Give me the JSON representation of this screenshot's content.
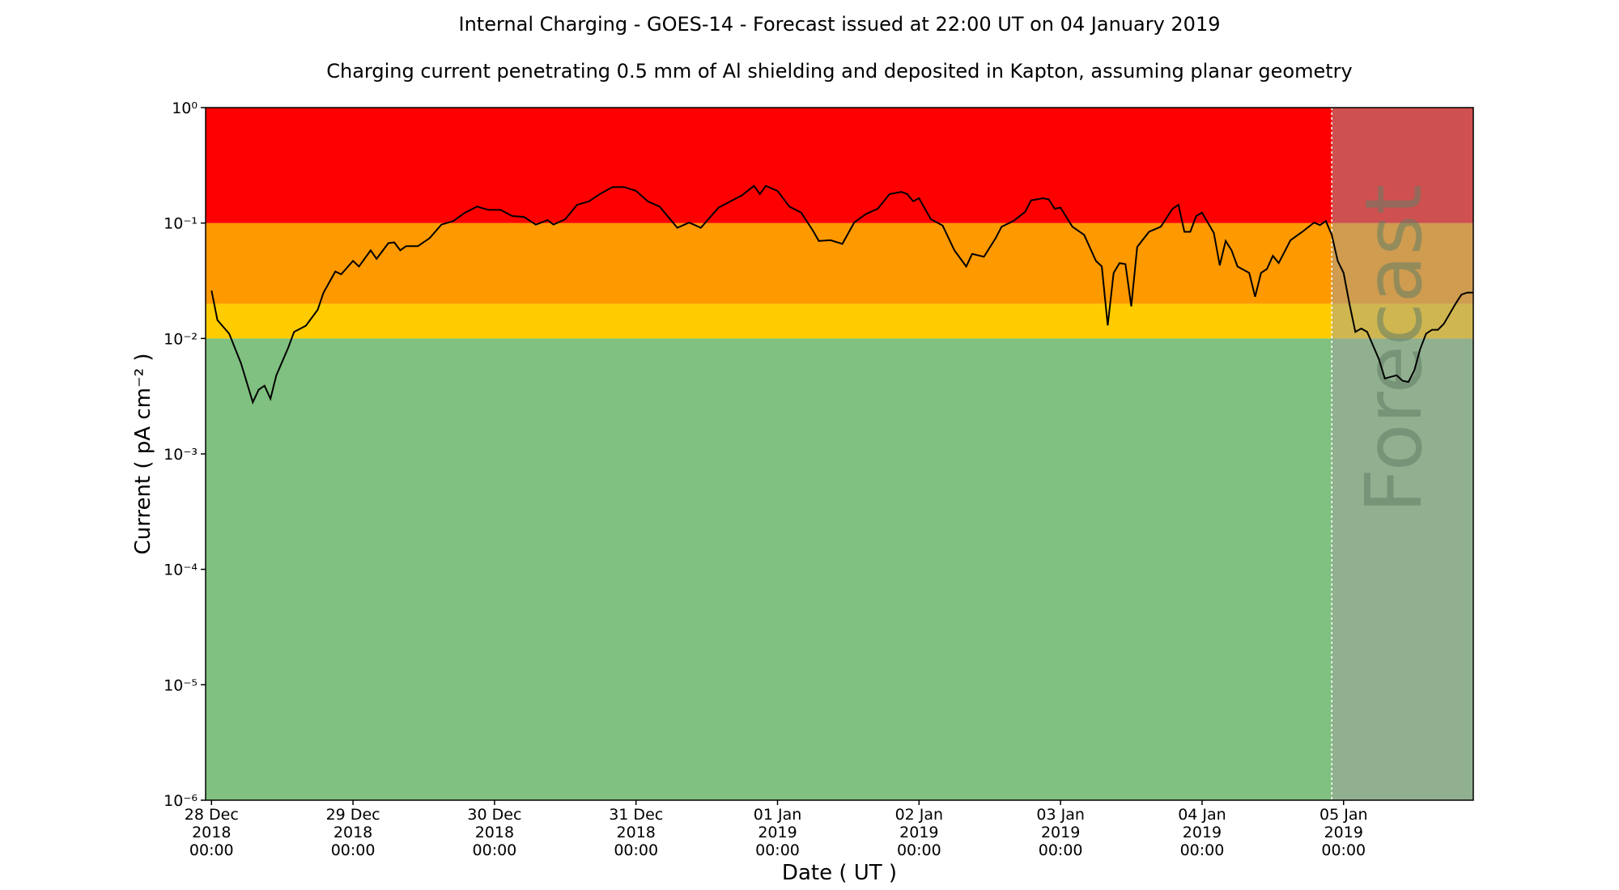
{
  "chart_data": {
    "type": "line",
    "title": "Internal Charging - GOES-14 - Forecast issued at 22:00 UT on 04 January 2019",
    "subtitle": "Charging current penetrating 0.5 mm of Al shielding and deposited in Kapton, assuming planar geometry",
    "x_label": "Date ( UT )",
    "y_label": "Current ( pA cm⁻² )",
    "annotation": "Forecast",
    "forecast_start": "2019-01-04T22:00",
    "log_y": true,
    "color": "#000000",
    "bands": [
      {
        "from": 1e-06,
        "to": 0.01,
        "color": "#80c080"
      },
      {
        "from": 0.01,
        "to": 0.02,
        "color": "#ffcc00"
      },
      {
        "from": 0.02,
        "to": 0.1,
        "color": "#ff9900"
      },
      {
        "from": 0.1,
        "to": 1,
        "color": "#ff0000"
      }
    ],
    "forecast_shade": "rgba(160,160,160,0.5)",
    "xlim": [
      "2018-12-27T23:00",
      "2019-01-05T22:00"
    ],
    "ylim": [
      1e-06,
      1
    ],
    "yticks": [
      {
        "value": 1e-06,
        "label": "10⁻⁶"
      },
      {
        "value": 1e-05,
        "label": "10⁻⁵"
      },
      {
        "value": 0.0001,
        "label": "10⁻⁴"
      },
      {
        "value": 0.001,
        "label": "10⁻³"
      },
      {
        "value": 0.01,
        "label": "10⁻²"
      },
      {
        "value": 0.1,
        "label": "10⁻¹"
      },
      {
        "value": 1,
        "label": "10⁰"
      }
    ],
    "xticks": [
      {
        "value": "2018-12-28T00:00",
        "label": [
          "28 Dec",
          "2018",
          "00:00"
        ]
      },
      {
        "value": "2018-12-29T00:00",
        "label": [
          "29 Dec",
          "2018",
          "00:00"
        ]
      },
      {
        "value": "2018-12-30T00:00",
        "label": [
          "30 Dec",
          "2018",
          "00:00"
        ]
      },
      {
        "value": "2018-12-31T00:00",
        "label": [
          "31 Dec",
          "2018",
          "00:00"
        ]
      },
      {
        "value": "2019-01-01T00:00",
        "label": [
          "01 Jan",
          "2019",
          "00:00"
        ]
      },
      {
        "value": "2019-01-02T00:00",
        "label": [
          "02 Jan",
          "2019",
          "00:00"
        ]
      },
      {
        "value": "2019-01-03T00:00",
        "label": [
          "03 Jan",
          "2019",
          "00:00"
        ]
      },
      {
        "value": "2019-01-04T00:00",
        "label": [
          "04 Jan",
          "2019",
          "00:00"
        ]
      },
      {
        "value": "2019-01-05T00:00",
        "label": [
          "05 Jan",
          "2019",
          "00:00"
        ]
      }
    ],
    "x": [
      "2018-12-28T00:00",
      "2018-12-28T01:00",
      "2018-12-28T03:00",
      "2018-12-28T05:00",
      "2018-12-28T07:00",
      "2018-12-28T08:00",
      "2018-12-28T09:00",
      "2018-12-28T10:00",
      "2018-12-28T11:00",
      "2018-12-28T13:00",
      "2018-12-28T14:00",
      "2018-12-28T16:00",
      "2018-12-28T18:00",
      "2018-12-28T19:00",
      "2018-12-28T21:00",
      "2018-12-28T22:00",
      "2018-12-29T00:00",
      "2018-12-29T01:00",
      "2018-12-29T03:00",
      "2018-12-29T04:00",
      "2018-12-29T06:00",
      "2018-12-29T07:00",
      "2018-12-29T08:00",
      "2018-12-29T09:00",
      "2018-12-29T11:00",
      "2018-12-29T13:00",
      "2018-12-29T15:00",
      "2018-12-29T17:00",
      "2018-12-29T19:00",
      "2018-12-29T21:00",
      "2018-12-29T23:00",
      "2018-12-30T01:00",
      "2018-12-30T03:00",
      "2018-12-30T05:00",
      "2018-12-30T07:00",
      "2018-12-30T09:00",
      "2018-12-30T10:00",
      "2018-12-30T12:00",
      "2018-12-30T14:00",
      "2018-12-30T16:00",
      "2018-12-30T18:00",
      "2018-12-30T20:00",
      "2018-12-30T22:00",
      "2018-12-31T00:00",
      "2018-12-31T02:00",
      "2018-12-31T04:00",
      "2018-12-31T07:00",
      "2018-12-31T09:00",
      "2018-12-31T11:00",
      "2018-12-31T14:00",
      "2018-12-31T16:00",
      "2018-12-31T18:00",
      "2018-12-31T20:00",
      "2018-12-31T21:00",
      "2018-12-31T22:00",
      "2019-01-01T00:00",
      "2019-01-01T02:00",
      "2019-01-01T04:00",
      "2019-01-01T06:00",
      "2019-01-01T07:00",
      "2019-01-01T09:00",
      "2019-01-01T11:00",
      "2019-01-01T13:00",
      "2019-01-01T15:00",
      "2019-01-01T17:00",
      "2019-01-01T19:00",
      "2019-01-01T21:00",
      "2019-01-01T22:00",
      "2019-01-01T23:00",
      "2019-01-02T00:00",
      "2019-01-02T02:00",
      "2019-01-02T04:00",
      "2019-01-02T06:00",
      "2019-01-02T08:00",
      "2019-01-02T09:00",
      "2019-01-02T11:00",
      "2019-01-02T13:00",
      "2019-01-02T14:00",
      "2019-01-02T16:00",
      "2019-01-02T18:00",
      "2019-01-02T19:00",
      "2019-01-02T21:00",
      "2019-01-02T22:00",
      "2019-01-02T23:00",
      "2019-01-03T00:00",
      "2019-01-03T02:00",
      "2019-01-03T04:00",
      "2019-01-03T06:00",
      "2019-01-03T07:00",
      "2019-01-03T08:00",
      "2019-01-03T09:00",
      "2019-01-03T10:00",
      "2019-01-03T11:00",
      "2019-01-03T12:00",
      "2019-01-03T13:00",
      "2019-01-03T15:00",
      "2019-01-03T17:00",
      "2019-01-03T19:00",
      "2019-01-03T20:00",
      "2019-01-03T21:00",
      "2019-01-03T22:00",
      "2019-01-03T23:00",
      "2019-01-04T00:00",
      "2019-01-04T02:00",
      "2019-01-04T03:00",
      "2019-01-04T04:00",
      "2019-01-04T05:00",
      "2019-01-04T06:00",
      "2019-01-04T08:00",
      "2019-01-04T09:00",
      "2019-01-04T10:00",
      "2019-01-04T11:00",
      "2019-01-04T12:00",
      "2019-01-04T13:00",
      "2019-01-04T15:00",
      "2019-01-04T17:00",
      "2019-01-04T19:00",
      "2019-01-04T20:00",
      "2019-01-04T21:00",
      "2019-01-04T22:00",
      "2019-01-04T23:00",
      "2019-01-05T00:00",
      "2019-01-05T01:00",
      "2019-01-05T02:00",
      "2019-01-05T03:00",
      "2019-01-05T04:00",
      "2019-01-05T06:00",
      "2019-01-05T07:00",
      "2019-01-05T09:00",
      "2019-01-05T10:00",
      "2019-01-05T11:00",
      "2019-01-05T12:00",
      "2019-01-05T13:00",
      "2019-01-05T14:00",
      "2019-01-05T15:00",
      "2019-01-05T16:00",
      "2019-01-05T17:00",
      "2019-01-05T19:00",
      "2019-01-05T20:00",
      "2019-01-05T21:00",
      "2019-01-05T22:00"
    ],
    "values": [
      0.026,
      0.0144,
      0.011,
      0.0061,
      0.0028,
      0.0036,
      0.0039,
      0.003,
      0.0048,
      0.0083,
      0.0114,
      0.0129,
      0.0177,
      0.025,
      0.038,
      0.036,
      0.047,
      0.042,
      0.058,
      0.049,
      0.067,
      0.068,
      0.058,
      0.063,
      0.063,
      0.074,
      0.097,
      0.104,
      0.123,
      0.139,
      0.13,
      0.13,
      0.115,
      0.113,
      0.097,
      0.106,
      0.097,
      0.108,
      0.144,
      0.154,
      0.18,
      0.205,
      0.205,
      0.19,
      0.154,
      0.139,
      0.091,
      0.101,
      0.091,
      0.136,
      0.154,
      0.174,
      0.21,
      0.178,
      0.21,
      0.19,
      0.139,
      0.123,
      0.086,
      0.07,
      0.071,
      0.066,
      0.101,
      0.12,
      0.133,
      0.178,
      0.186,
      0.178,
      0.154,
      0.164,
      0.108,
      0.095,
      0.058,
      0.042,
      0.054,
      0.051,
      0.074,
      0.093,
      0.104,
      0.125,
      0.157,
      0.164,
      0.16,
      0.133,
      0.136,
      0.093,
      0.079,
      0.047,
      0.042,
      0.013,
      0.037,
      0.045,
      0.044,
      0.019,
      0.062,
      0.084,
      0.093,
      0.133,
      0.144,
      0.084,
      0.084,
      0.115,
      0.123,
      0.082,
      0.043,
      0.07,
      0.058,
      0.042,
      0.037,
      0.023,
      0.037,
      0.04,
      0.052,
      0.045,
      0.071,
      0.084,
      0.101,
      0.096,
      0.104,
      0.079,
      0.047,
      0.037,
      0.02,
      0.0114,
      0.0122,
      0.0114,
      0.0066,
      0.0045,
      0.0048,
      0.0043,
      0.0042,
      0.0053,
      0.0081,
      0.011,
      0.0119,
      0.0119,
      0.0134,
      0.02,
      0.024,
      0.025,
      0.025
    ]
  }
}
